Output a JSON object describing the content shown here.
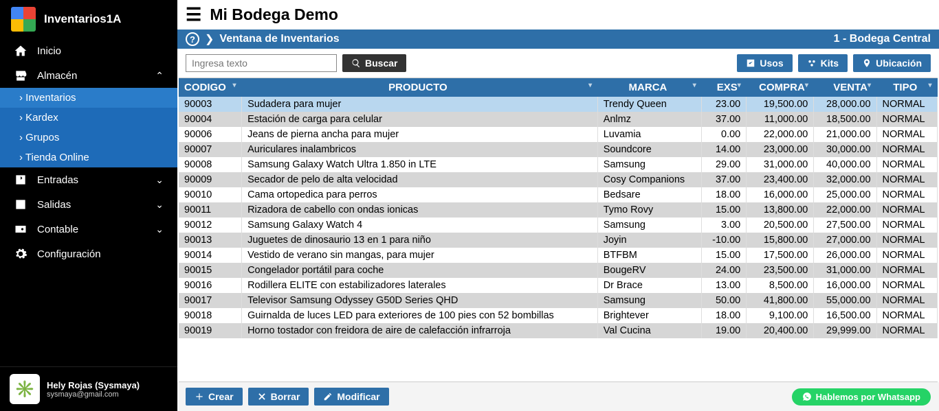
{
  "brand": "Inventarios1A",
  "nav": {
    "inicio": "Inicio",
    "almacen": "Almacén",
    "sub": {
      "inventarios": "Inventarios",
      "kardex": "Kardex",
      "grupos": "Grupos",
      "tienda": "Tienda Online"
    },
    "entradas": "Entradas",
    "salidas": "Salidas",
    "contable": "Contable",
    "config": "Configuración"
  },
  "user": {
    "name": "Hely Rojas (Sysmaya)",
    "email": "sysmaya@gmail.com"
  },
  "app_title": "Mi Bodega Demo",
  "crumb": {
    "title": "Ventana de Inventarios",
    "location": "1 - Bodega Central"
  },
  "toolbar": {
    "search_placeholder": "Ingresa texto",
    "search_btn": "Buscar",
    "usos": "Usos",
    "kits": "Kits",
    "ubicacion": "Ubicación"
  },
  "columns": {
    "codigo": "CODIGO",
    "producto": "PRODUCTO",
    "marca": "MARCA",
    "exs": "EXS",
    "compra": "COMPRA",
    "venta": "VENTA",
    "tipo": "TIPO"
  },
  "rows": [
    {
      "codigo": "90003",
      "producto": "Sudadera para mujer",
      "marca": "Trendy Queen",
      "exs": "23.00",
      "compra": "19,500.00",
      "venta": "28,000.00",
      "tipo": "NORMAL",
      "sel": true
    },
    {
      "codigo": "90004",
      "producto": "Estación de carga para celular",
      "marca": "Anlmz",
      "exs": "37.00",
      "compra": "11,000.00",
      "venta": "18,500.00",
      "tipo": "NORMAL"
    },
    {
      "codigo": "90006",
      "producto": "Jeans de pierna ancha para mujer",
      "marca": "Luvamia",
      "exs": "0.00",
      "compra": "22,000.00",
      "venta": "21,000.00",
      "tipo": "NORMAL"
    },
    {
      "codigo": "90007",
      "producto": "Auriculares inalambricos",
      "marca": "Soundcore",
      "exs": "14.00",
      "compra": "23,000.00",
      "venta": "30,000.00",
      "tipo": "NORMAL"
    },
    {
      "codigo": "90008",
      "producto": "Samsung Galaxy Watch Ultra 1.850 in LTE",
      "marca": "Samsung",
      "exs": "29.00",
      "compra": "31,000.00",
      "venta": "40,000.00",
      "tipo": "NORMAL"
    },
    {
      "codigo": "90009",
      "producto": "Secador de pelo de alta velocidad",
      "marca": "Cosy Companions",
      "exs": "37.00",
      "compra": "23,400.00",
      "venta": "32,000.00",
      "tipo": "NORMAL"
    },
    {
      "codigo": "90010",
      "producto": "Cama ortopedica para perros",
      "marca": "Bedsare",
      "exs": "18.00",
      "compra": "16,000.00",
      "venta": "25,000.00",
      "tipo": "NORMAL"
    },
    {
      "codigo": "90011",
      "producto": "Rizadora de cabello con ondas ionicas",
      "marca": "Tymo Rovy",
      "exs": "15.00",
      "compra": "13,800.00",
      "venta": "22,000.00",
      "tipo": "NORMAL"
    },
    {
      "codigo": "90012",
      "producto": "Samsung Galaxy Watch 4",
      "marca": "Samsung",
      "exs": "3.00",
      "compra": "20,500.00",
      "venta": "27,500.00",
      "tipo": "NORMAL"
    },
    {
      "codigo": "90013",
      "producto": "Juguetes de dinosaurio 13 en 1 para niño",
      "marca": "Joyin",
      "exs": "-10.00",
      "compra": "15,800.00",
      "venta": "27,000.00",
      "tipo": "NORMAL"
    },
    {
      "codigo": "90014",
      "producto": "Vestido de verano sin mangas, para mujer",
      "marca": "BTFBM",
      "exs": "15.00",
      "compra": "17,500.00",
      "venta": "26,000.00",
      "tipo": "NORMAL"
    },
    {
      "codigo": "90015",
      "producto": "Congelador portátil para coche",
      "marca": "BougeRV",
      "exs": "24.00",
      "compra": "23,500.00",
      "venta": "31,000.00",
      "tipo": "NORMAL"
    },
    {
      "codigo": "90016",
      "producto": "Rodillera ELITE con estabilizadores laterales",
      "marca": "Dr Brace",
      "exs": "13.00",
      "compra": "8,500.00",
      "venta": "16,000.00",
      "tipo": "NORMAL"
    },
    {
      "codigo": "90017",
      "producto": "Televisor Samsung Odyssey G50D Series QHD",
      "marca": "Samsung",
      "exs": "50.00",
      "compra": "41,800.00",
      "venta": "55,000.00",
      "tipo": "NORMAL"
    },
    {
      "codigo": "90018",
      "producto": "Guirnalda de luces LED para exteriores de 100 pies con 52 bombillas",
      "marca": "Brightever",
      "exs": "18.00",
      "compra": "9,100.00",
      "venta": "16,500.00",
      "tipo": "NORMAL"
    },
    {
      "codigo": "90019",
      "producto": "Horno tostador con freidora de aire de calefacción infrarroja",
      "marca": "Val Cucina",
      "exs": "19.00",
      "compra": "20,400.00",
      "venta": "29,999.00",
      "tipo": "NORMAL"
    }
  ],
  "footer": {
    "crear": "Crear",
    "borrar": "Borrar",
    "modificar": "Modificar",
    "whatsapp": "Hablemos por Whatsapp"
  },
  "colors": {
    "header": "#2e6fa8",
    "sidebar": "#000",
    "sub": "#1e6bb8",
    "row_even": "#d6d6d6",
    "row_sel": "#b9d7ef",
    "whatsapp": "#25d366"
  }
}
